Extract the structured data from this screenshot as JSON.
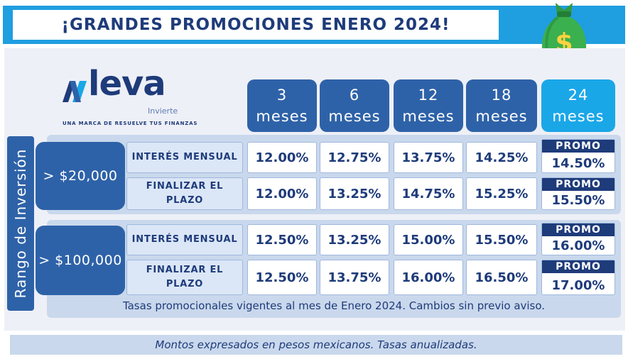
{
  "banner": {
    "title": "¡GRANDES PROMOCIONES ENERO 2024!"
  },
  "brand": {
    "name": "leva",
    "sub": "Invierte",
    "tagline": "UNA MARCA DE RESUELVE TUS FINANZAS"
  },
  "icons": {
    "logo": "leva-logo-icon",
    "bag": "money-bag-icon"
  },
  "terms": [
    {
      "num": "3",
      "unit": "meses"
    },
    {
      "num": "6",
      "unit": "meses"
    },
    {
      "num": "12",
      "unit": "meses"
    },
    {
      "num": "18",
      "unit": "meses"
    },
    {
      "num": "24",
      "unit": "meses"
    }
  ],
  "side_label": "Rango de Inversión",
  "groups": [
    {
      "amount": "> $20,000",
      "rows": [
        {
          "label": "INTERÉS MENSUAL",
          "rates": [
            "12.00%",
            "12.75%",
            "13.75%",
            "14.25%"
          ],
          "promo_tag": "PROMO",
          "promo_rate": "14.50%"
        },
        {
          "label": "FINALIZAR EL PLAZO",
          "rates": [
            "12.00%",
            "13.25%",
            "14.75%",
            "15.25%"
          ],
          "promo_tag": "PROMO",
          "promo_rate": "15.50%"
        }
      ]
    },
    {
      "amount": "> $100,000",
      "rows": [
        {
          "label": "INTERÉS MENSUAL",
          "rates": [
            "12.50%",
            "13.25%",
            "15.00%",
            "15.50%"
          ],
          "promo_tag": "PROMO",
          "promo_rate": "16.00%"
        },
        {
          "label": "FINALIZAR EL PLAZO",
          "rates": [
            "12.50%",
            "13.75%",
            "16.00%",
            "16.50%"
          ],
          "promo_tag": "PROMO",
          "promo_rate": "17.00%"
        }
      ]
    }
  ],
  "note": "Tasas promocionales vigentes al mes de Enero 2024. Cambios sin previo aviso.",
  "footer": "Montos expresados en pesos mexicanos. Tasas anualizadas.",
  "colors": {
    "banner": "#1f9ee0",
    "navy": "#1e3b7a",
    "blue": "#2e62a8",
    "highlight": "#1aa7e8",
    "panel": "#c9d8ec"
  }
}
